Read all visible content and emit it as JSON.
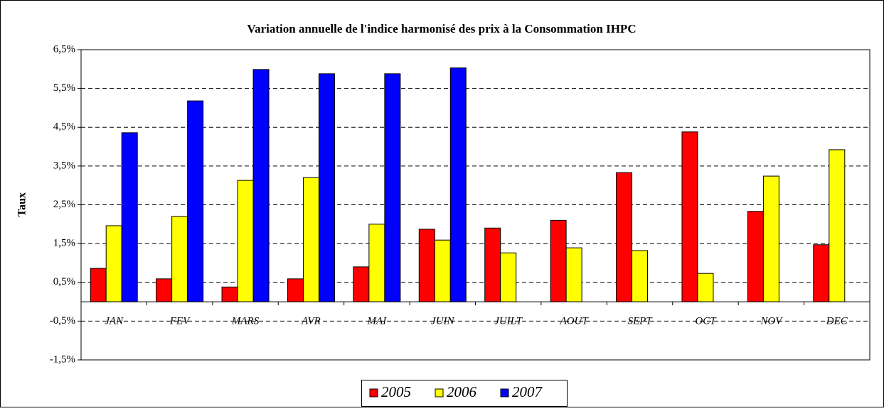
{
  "chart_data": {
    "type": "bar",
    "title": "Variation annuelle de l'indice harmonisé des prix à la Consommation IHPC",
    "y_label": "Taux",
    "categories": [
      "JAN",
      "FEV",
      "MARS",
      "AVR",
      "MAI",
      "JUIN",
      "JUILT",
      "AOUT",
      "SEPT",
      "OCT",
      "NOV",
      "DEC"
    ],
    "series": [
      {
        "name": "2005",
        "color": "#ff0000",
        "values": [
          0.86,
          0.59,
          0.38,
          0.59,
          0.9,
          1.87,
          1.9,
          2.1,
          3.33,
          4.38,
          2.33,
          1.47
        ]
      },
      {
        "name": "2006",
        "color": "#ffff00",
        "values": [
          1.96,
          2.2,
          3.13,
          3.2,
          2.0,
          1.59,
          1.26,
          1.39,
          1.32,
          0.73,
          3.24,
          3.92
        ]
      },
      {
        "name": "2007",
        "color": "#0000ff",
        "values": [
          4.36,
          5.18,
          5.99,
          5.88,
          5.88,
          6.03,
          null,
          null,
          null,
          null,
          null,
          null
        ]
      }
    ],
    "ylim": [
      -1.5,
      6.5
    ],
    "yticks": [
      {
        "value": -1.5,
        "label": "-1,5%"
      },
      {
        "value": -0.5,
        "label": "-0,5%"
      },
      {
        "value": 0.5,
        "label": "0,5%"
      },
      {
        "value": 1.5,
        "label": "1,5%"
      },
      {
        "value": 2.5,
        "label": "2,5%"
      },
      {
        "value": 3.5,
        "label": "3,5%"
      },
      {
        "value": 4.5,
        "label": "4,5%"
      },
      {
        "value": 5.5,
        "label": "5,5%"
      },
      {
        "value": 6.5,
        "label": "6,5%"
      }
    ],
    "grid": true
  }
}
